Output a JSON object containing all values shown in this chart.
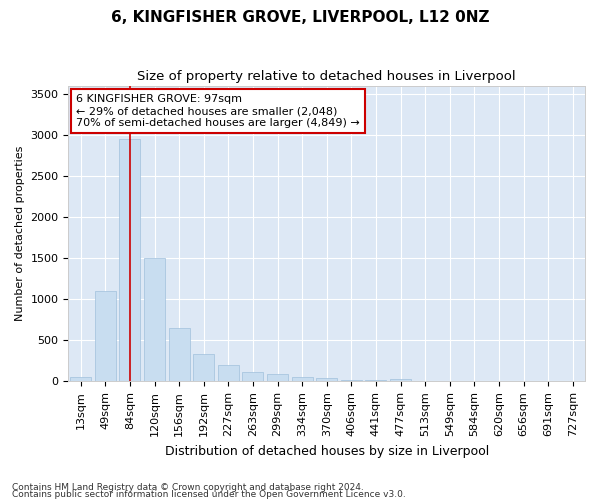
{
  "title1": "6, KINGFISHER GROVE, LIVERPOOL, L12 0NZ",
  "title2": "Size of property relative to detached houses in Liverpool",
  "xlabel": "Distribution of detached houses by size in Liverpool",
  "ylabel": "Number of detached properties",
  "categories": [
    "13sqm",
    "49sqm",
    "84sqm",
    "120sqm",
    "156sqm",
    "192sqm",
    "227sqm",
    "263sqm",
    "299sqm",
    "334sqm",
    "370sqm",
    "406sqm",
    "441sqm",
    "477sqm",
    "513sqm",
    "549sqm",
    "584sqm",
    "620sqm",
    "656sqm",
    "691sqm",
    "727sqm"
  ],
  "values": [
    50,
    1100,
    2950,
    1500,
    650,
    330,
    200,
    110,
    90,
    50,
    35,
    20,
    15,
    25,
    0,
    0,
    0,
    0,
    0,
    0,
    0
  ],
  "bar_color": "#c8ddf0",
  "bar_edge_color": "#a0c0dc",
  "red_line_x": 2.0,
  "annotation_text": "6 KINGFISHER GROVE: 97sqm\n← 29% of detached houses are smaller (2,048)\n70% of semi-detached houses are larger (4,849) →",
  "annotation_box_color": "#ffffff",
  "annotation_box_edge": "#cc0000",
  "ylim": [
    0,
    3600
  ],
  "yticks": [
    0,
    500,
    1000,
    1500,
    2000,
    2500,
    3000,
    3500
  ],
  "plot_bg_color": "#dde8f5",
  "grid_color": "#ffffff",
  "fig_bg_color": "#ffffff",
  "footer1": "Contains HM Land Registry data © Crown copyright and database right 2024.",
  "footer2": "Contains public sector information licensed under the Open Government Licence v3.0.",
  "title1_fontsize": 11,
  "title2_fontsize": 9.5,
  "xlabel_fontsize": 9,
  "ylabel_fontsize": 8,
  "tick_fontsize": 8,
  "footer_fontsize": 6.5,
  "annot_fontsize": 8
}
